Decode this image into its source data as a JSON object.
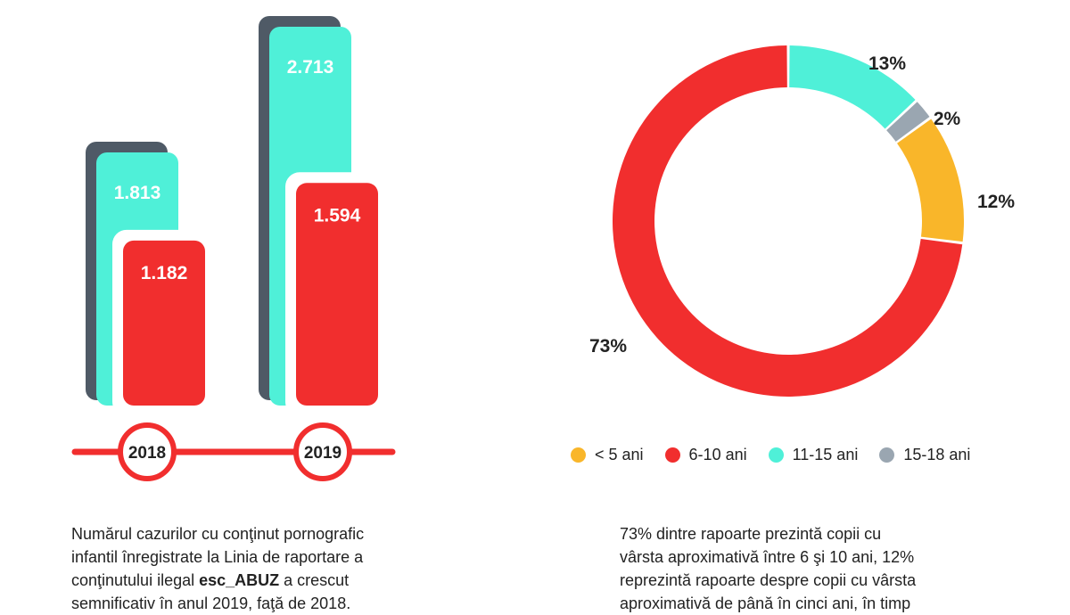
{
  "chart_data": [
    {
      "type": "bar",
      "categories": [
        "2018",
        "2019"
      ],
      "series": [
        {
          "values": [
            1813,
            2713
          ],
          "labels": [
            "1.813",
            "2.713"
          ],
          "color": "#4ff0d8"
        },
        {
          "values": [
            1182,
            1594
          ],
          "labels": [
            "1.182",
            "1.594"
          ],
          "color": "#f12e2e"
        }
      ],
      "shadow_color": "#4f5a66",
      "timeline_color": "#f12e2e"
    },
    {
      "type": "pie",
      "variant": "donut",
      "slices": [
        {
          "label": "11-15 ani",
          "value": 13,
          "pct_label": "13%",
          "color": "#4ff0d8"
        },
        {
          "label": "15-18 ani",
          "value": 2,
          "pct_label": "2%",
          "color": "#9aa6b1"
        },
        {
          "label": "< 5 ani",
          "value": 12,
          "pct_label": "12%",
          "color": "#f9b62a"
        },
        {
          "label": "6-10 ani",
          "value": 73,
          "pct_label": "73%",
          "color": "#f12e2e"
        }
      ],
      "legend": [
        {
          "label": "< 5 ani",
          "color": "#f9b62a"
        },
        {
          "label": "6-10 ani",
          "color": "#f12e2e"
        },
        {
          "label": "11-15 ani",
          "color": "#4ff0d8"
        },
        {
          "label": "15-18 ani",
          "color": "#9aa6b1"
        }
      ]
    }
  ],
  "captions": {
    "left": {
      "line1": "Numărul cazurilor cu conţinut pornografic",
      "line2": "infantil înregistrate la Linia de raportare a",
      "line3_pre": "conţinutului ilegal ",
      "line3_brand": "esc_ABUZ",
      "line3_post": " a crescut",
      "line4": "semnificativ în anul 2019, faţă de 2018."
    },
    "right": {
      "line1": "73% dintre rapoarte prezintă copii cu",
      "line2": "vârsta aproximativă între 6 şi 10 ani, 12%",
      "line3": "reprezintă rapoarte despre copii cu vârsta",
      "line4": "aproximativă de până în cinci ani, în timp"
    }
  }
}
